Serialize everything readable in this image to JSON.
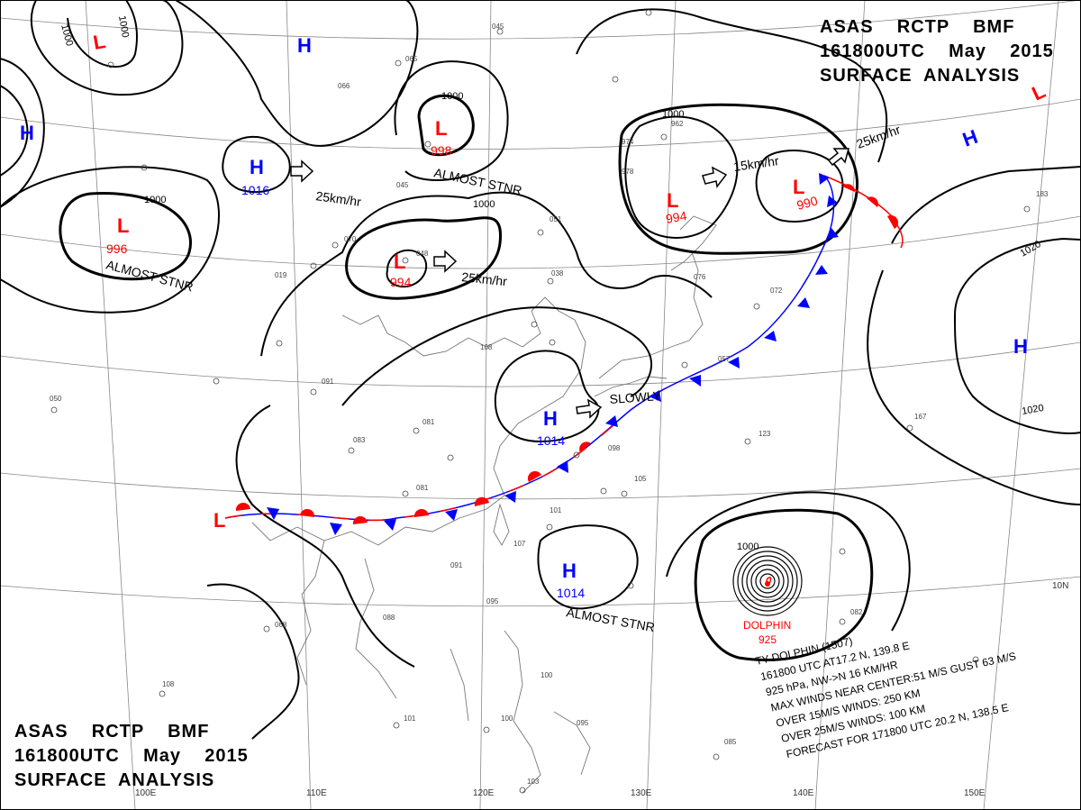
{
  "header": {
    "top_right": [
      "ASAS    RCTP    BMF",
      "161800UTC    May    2015",
      "SURFACE  ANALYSIS"
    ],
    "bottom_left": [
      "ASAS    RCTP    BMF",
      "161800UTC    May    2015",
      "SURFACE  ANALYSIS"
    ]
  },
  "grid_labels": [
    "100E",
    "110E",
    "120E",
    "130E",
    "140E",
    "150E",
    "10N"
  ],
  "colors": {
    "low": "#ff0000",
    "high": "#0000ff",
    "warm_front": "#ff0000",
    "cold_front": "#0000ff",
    "isobar": "#000000",
    "coast": "#777777"
  },
  "systems": [
    {
      "type": "L",
      "pressure": ""
    },
    {
      "type": "H",
      "pressure": ""
    },
    {
      "type": "H",
      "pressure": ""
    },
    {
      "type": "L",
      "pressure": "996",
      "note": "ALMOST STNR"
    },
    {
      "type": "H",
      "pressure": "1016"
    },
    {
      "type": "L",
      "pressure": "998",
      "note": "ALMOST STNR"
    },
    {
      "type": "L",
      "pressure": "994"
    },
    {
      "type": "L",
      "pressure": "994"
    },
    {
      "type": "L",
      "pressure": "990"
    },
    {
      "type": "L",
      "pressure": ""
    },
    {
      "type": "H",
      "pressure": ""
    },
    {
      "type": "H",
      "pressure": ""
    },
    {
      "type": "H",
      "pressure": "1014"
    },
    {
      "type": "H",
      "pressure": "1014",
      "note": "ALMOST STNR"
    },
    {
      "type": "L",
      "pressure": ""
    }
  ],
  "motions": [
    "25km/hr",
    "25km/hr",
    "15km/hr",
    "25km/hr",
    "SLOWLY"
  ],
  "isobar_labels": [
    "1000",
    "1000",
    "1000",
    "1000",
    "1000",
    "1000",
    "1020",
    "1020",
    "1000"
  ],
  "typhoon": {
    "name": "DOLPHIN",
    "pressure": "925",
    "bulletin": [
      "TY  DOLPHIN  (1507)",
      "161800 UTC   AT17.2 N, 139.8 E",
      "925 hPa, NW->N  16 KM/HR",
      "MAX WINDS NEAR CENTER:51 M/S GUST 63 M/S",
      "OVER 15M/S WINDS: 250 KM",
      "OVER 25M/S WINDS: 100 KM",
      "FORECAST FOR 171800 UTC 20.2 N, 138.5 E"
    ]
  }
}
